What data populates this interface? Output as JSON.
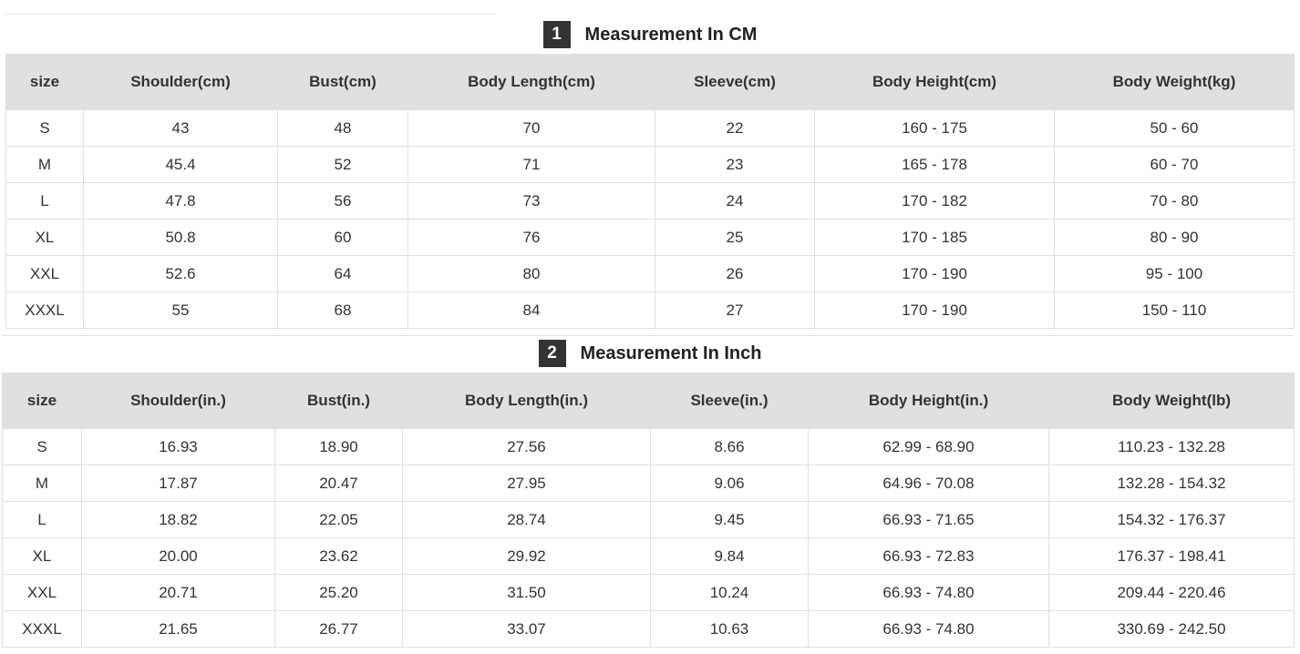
{
  "sections": [
    {
      "number": "1",
      "title": "Measurement In CM",
      "headers": [
        "size",
        "Shoulder(cm)",
        "Bust(cm)",
        "Body Length(cm)",
        "Sleeve(cm)",
        "Body Height(cm)",
        "Body Weight(kg)"
      ],
      "rows": [
        [
          "S",
          "43",
          "48",
          "70",
          "22",
          "160 - 175",
          "50 - 60"
        ],
        [
          "M",
          "45.4",
          "52",
          "71",
          "23",
          "165 - 178",
          "60 - 70"
        ],
        [
          "L",
          "47.8",
          "56",
          "73",
          "24",
          "170 - 182",
          "70 - 80"
        ],
        [
          "XL",
          "50.8",
          "60",
          "76",
          "25",
          "170 - 185",
          "80 - 90"
        ],
        [
          "XXL",
          "52.6",
          "64",
          "80",
          "26",
          "170 - 190",
          "95 - 100"
        ],
        [
          "XXXL",
          "55",
          "68",
          "84",
          "27",
          "170 - 190",
          "150 - 110"
        ]
      ]
    },
    {
      "number": "2",
      "title": "Measurement In Inch",
      "headers": [
        "size",
        "Shoulder(in.)",
        "Bust(in.)",
        "Body Length(in.)",
        "Sleeve(in.)",
        "Body Height(in.)",
        "Body Weight(lb)"
      ],
      "rows": [
        [
          "S",
          "16.93",
          "18.90",
          "27.56",
          "8.66",
          "62.99 - 68.90",
          "110.23 - 132.28"
        ],
        [
          "M",
          "17.87",
          "20.47",
          "27.95",
          "9.06",
          "64.96 - 70.08",
          "132.28 - 154.32"
        ],
        [
          "L",
          "18.82",
          "22.05",
          "28.74",
          "9.45",
          "66.93 - 71.65",
          "154.32 - 176.37"
        ],
        [
          "XL",
          "20.00",
          "23.62",
          "29.92",
          "9.84",
          "66.93 - 72.83",
          "176.37 - 198.41"
        ],
        [
          "XXL",
          "20.71",
          "25.20",
          "31.50",
          "10.24",
          "66.93 - 74.80",
          "209.44 - 220.46"
        ],
        [
          "XXXL",
          "21.65",
          "26.77",
          "33.07",
          "10.63",
          "66.93 - 74.80",
          "330.69 - 242.50"
        ]
      ]
    }
  ]
}
